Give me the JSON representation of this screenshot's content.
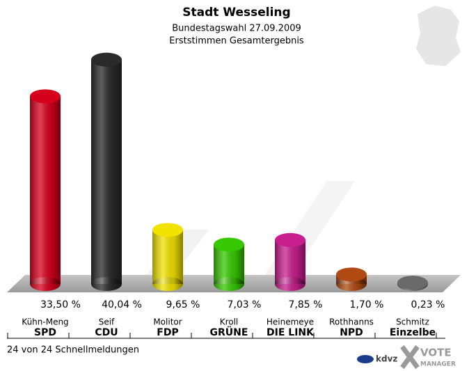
{
  "chart_data": {
    "type": "bar",
    "title": "Stadt Wesseling",
    "subtitle": "Bundestagswahl 27.09.2009",
    "subtitle2": "Erststimmen Gesamtergebnis",
    "categories": [
      "Kühn-Meng",
      "Seif",
      "Molitor",
      "Kroll",
      "Heinemeye",
      "Rothhanns",
      "Schmitz"
    ],
    "parties": [
      "SPD",
      "CDU",
      "FDP",
      "GRÜNE",
      "DIE LINK",
      "NPD",
      "Einzelbe"
    ],
    "values": [
      33.5,
      40.04,
      9.65,
      7.03,
      7.85,
      1.7,
      0.23
    ],
    "value_labels": [
      "33,50 %",
      "40,04 %",
      "9,65 %",
      "7,03 %",
      "7,85 %",
      "1,70 %",
      "0,23 %"
    ],
    "colors": [
      "#d6001c",
      "#2a2a2a",
      "#f2e200",
      "#36c800",
      "#c81e8e",
      "#b04a12",
      "#6a6a6a"
    ]
  },
  "footer": {
    "note": "24 von 24 Schnellmeldungen",
    "logo1": "kdvz",
    "logo2": "VOTE",
    "logo3": "MANAGER"
  }
}
